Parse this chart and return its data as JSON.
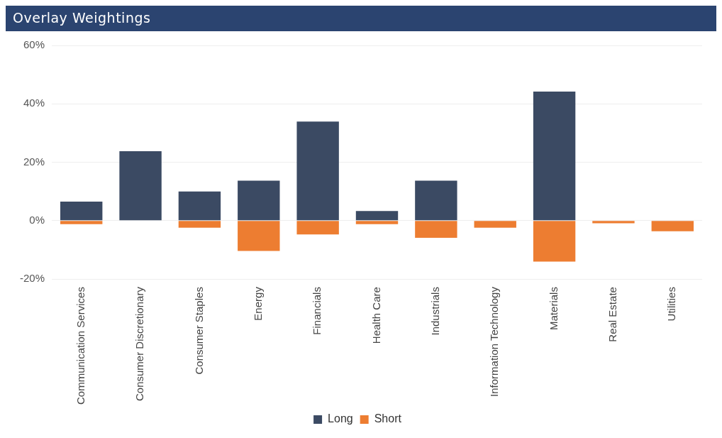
{
  "chart_data": {
    "type": "bar",
    "title": "Overlay Weightings",
    "stacked": true,
    "categories": [
      "Communication Services",
      "Consumer Discretionary",
      "Consumer Staples",
      "Energy",
      "Financials",
      "Health Care",
      "Industrials",
      "Information Technology",
      "Materials",
      "Real Estate",
      "Utilities"
    ],
    "series": [
      {
        "name": "Long",
        "color": "#3b4a63",
        "values": [
          6.5,
          23.8,
          10,
          13.7,
          33.9,
          3.3,
          13.7,
          0,
          44.2,
          0,
          0
        ]
      },
      {
        "name": "Short",
        "color": "#ed7d31",
        "values": [
          -1.2,
          0,
          -2.4,
          -10.4,
          -4.7,
          -1.2,
          -5.9,
          -2.4,
          -14,
          -0.9,
          -3.6
        ]
      }
    ],
    "ylim": [
      -20,
      60
    ],
    "yticks": [
      {
        "value": -20,
        "label": "-20%"
      },
      {
        "value": 0,
        "label": "0%"
      },
      {
        "value": 20,
        "label": "20%"
      },
      {
        "value": 40,
        "label": "40%"
      },
      {
        "value": 60,
        "label": "60%"
      }
    ],
    "grid": "y",
    "legend": "bottom"
  }
}
